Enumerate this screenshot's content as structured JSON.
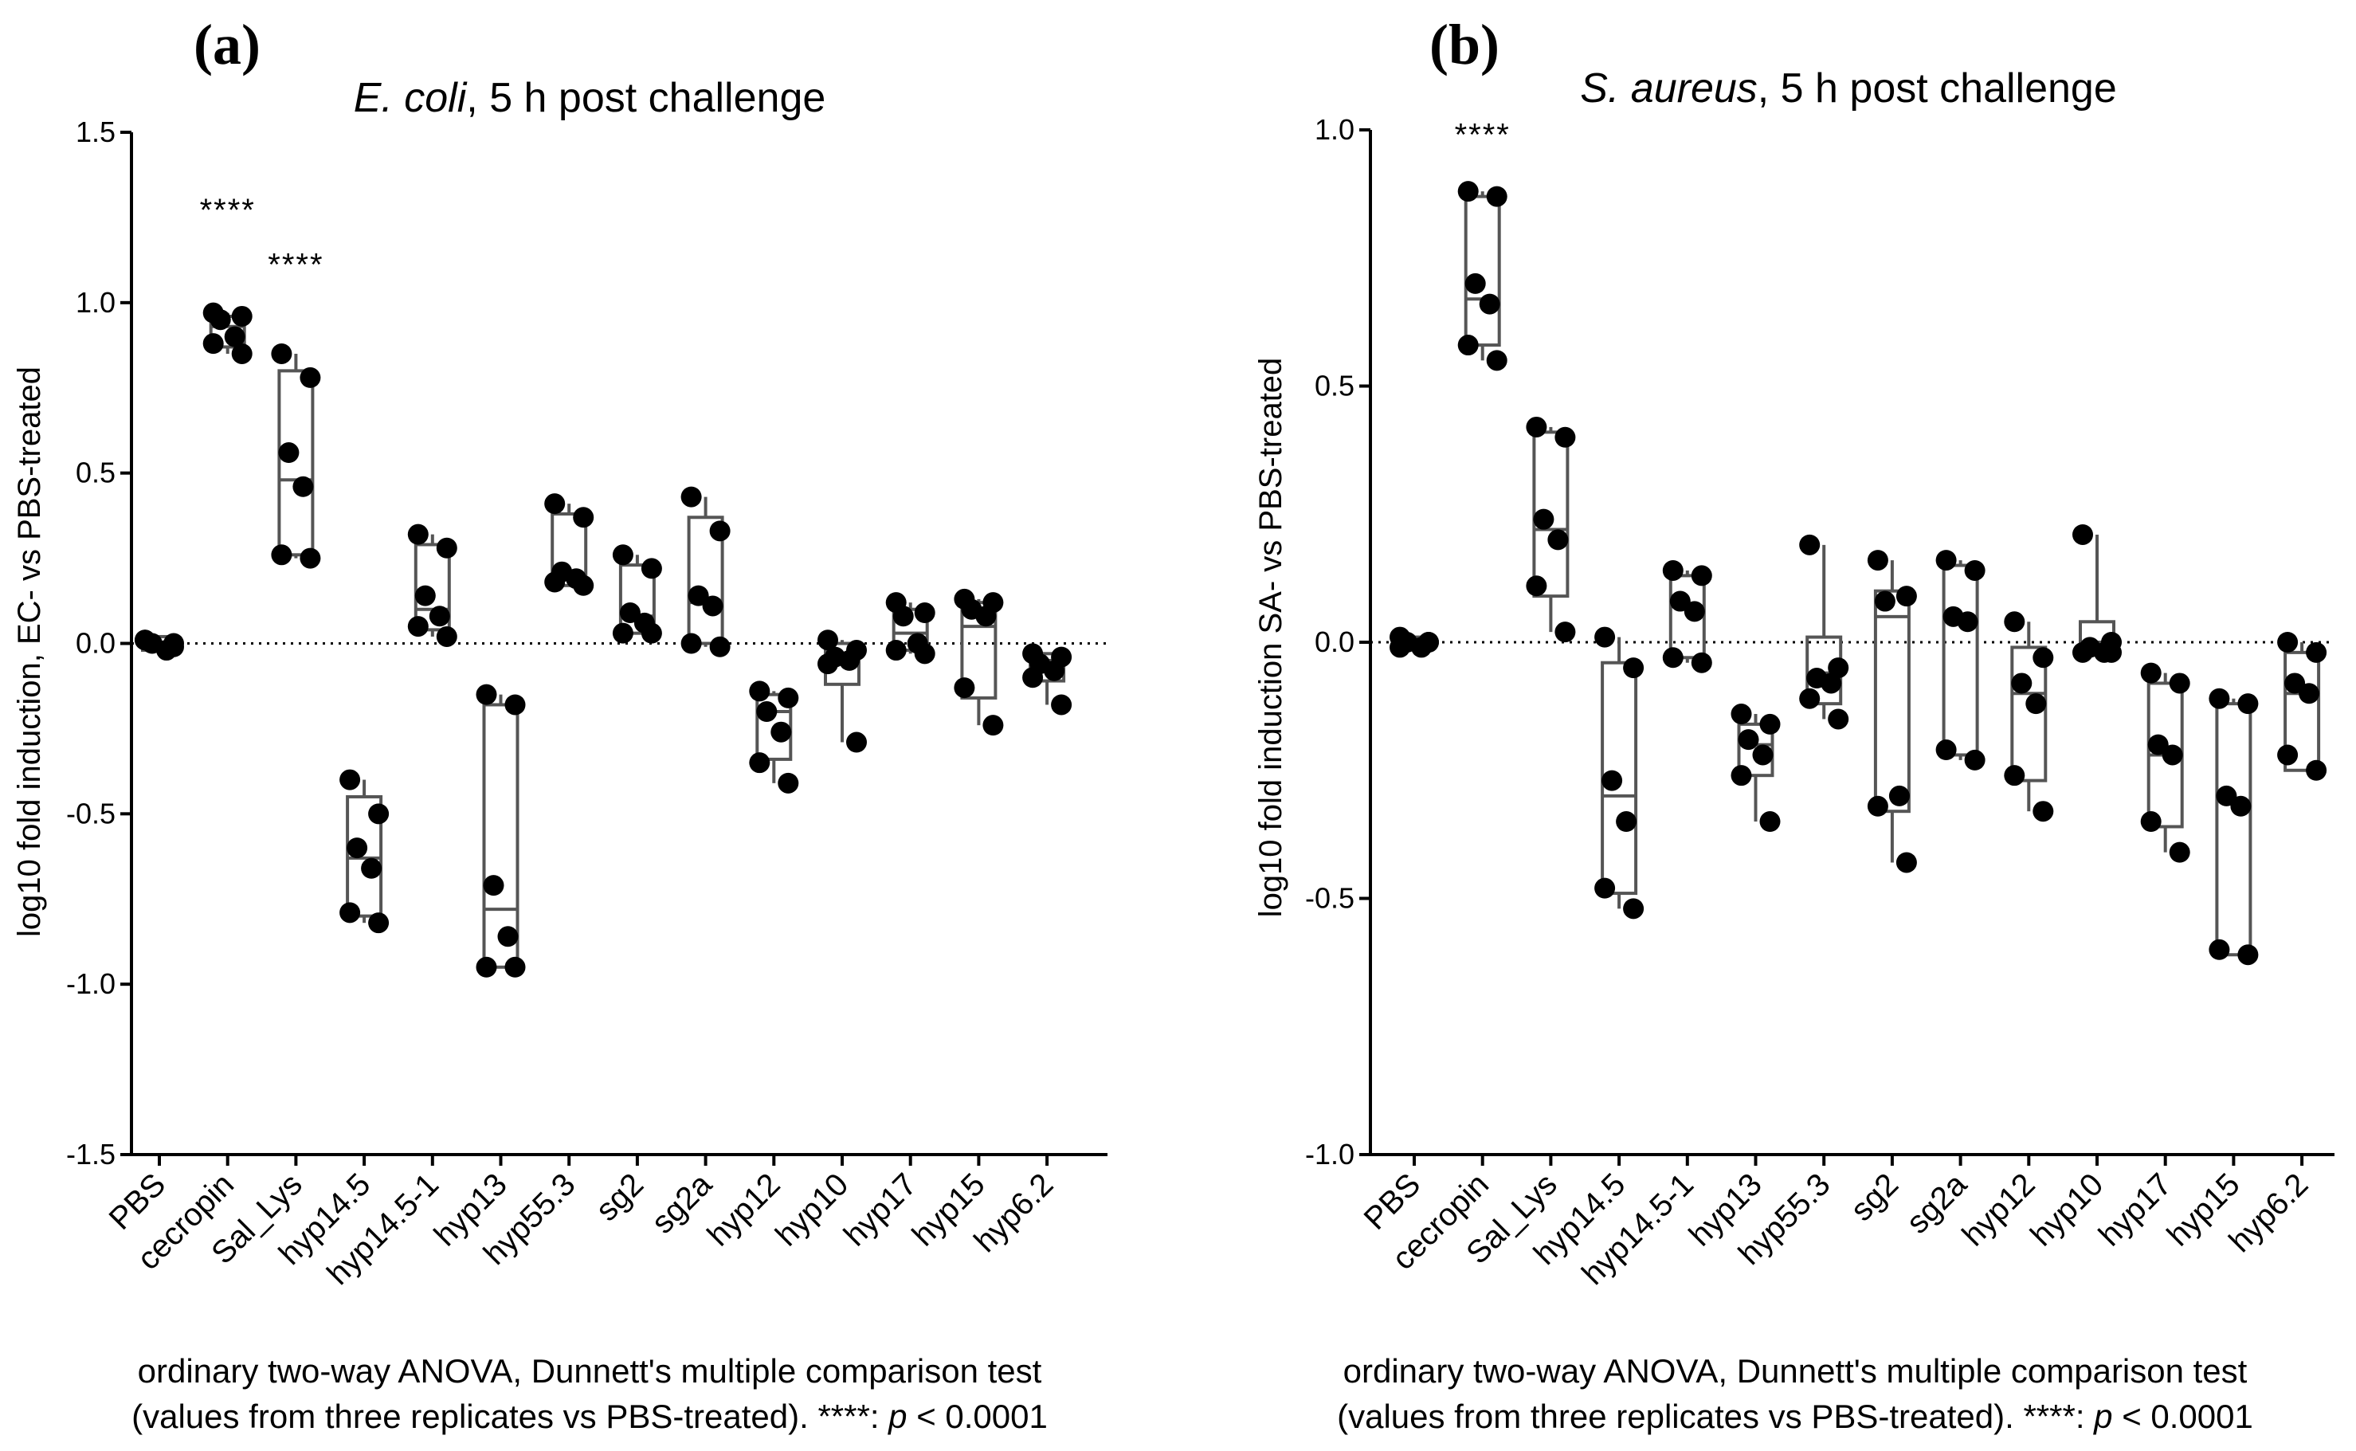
{
  "categories": [
    "PBS",
    "cecropin",
    "Sal_Lys",
    "hyp14.5",
    "hyp14.5-1",
    "hyp13",
    "hyp55.3",
    "sg2",
    "sg2a",
    "hyp12",
    "hyp10",
    "hyp17",
    "hyp15",
    "hyp6.2"
  ],
  "colors": {
    "box": "#555555",
    "point": "#000000",
    "axis": "#000000",
    "baseline": "#000000"
  },
  "footnote": {
    "line1": "ordinary two-way ANOVA, Dunnett's multiple comparison test",
    "line2_prefix": "(values from three replicates vs PBS-treated). ****: ",
    "p_symbol": "p",
    "line2_suffix": " < 0.0001"
  },
  "chart_data": [
    {
      "panel": "(a)",
      "type": "scatter",
      "title_italic": "E. coli",
      "title_rest": ", 5 h post challenge",
      "ylabel": "log10 fold induction, EC- vs PBS-treated",
      "ylim": [
        -1.5,
        1.5
      ],
      "yticks": [
        1.5,
        1.0,
        0.5,
        0.0,
        -0.5,
        -1.0,
        -1.5
      ],
      "ytick_labels": [
        "1.5",
        "1.0",
        "0.5",
        "0.0",
        "-0.5",
        "-1.0",
        "-1.5"
      ],
      "baseline": 0,
      "significance": [
        {
          "category": "cecropin",
          "label": "****",
          "y": 1.24
        },
        {
          "category": "Sal_Lys",
          "label": "****",
          "y": 1.08
        }
      ],
      "series": [
        {
          "name": "PBS",
          "box": [
            -0.02,
            0.0,
            0.02
          ],
          "points": [
            0.01,
            -0.01,
            0.0,
            -0.02,
            0.01,
            0.0
          ]
        },
        {
          "name": "cecropin",
          "box": [
            0.87,
            0.93,
            0.96
          ],
          "points": [
            0.97,
            0.96,
            0.95,
            0.9,
            0.88,
            0.85
          ]
        },
        {
          "name": "Sal_Lys",
          "box": [
            0.26,
            0.48,
            0.8
          ],
          "points": [
            0.85,
            0.78,
            0.56,
            0.46,
            0.26,
            0.25
          ]
        },
        {
          "name": "hyp14.5",
          "box": [
            -0.8,
            -0.63,
            -0.45
          ],
          "points": [
            -0.4,
            -0.5,
            -0.6,
            -0.66,
            -0.79,
            -0.82
          ]
        },
        {
          "name": "hyp14.5-1",
          "box": [
            0.04,
            0.1,
            0.29
          ],
          "points": [
            0.32,
            0.28,
            0.14,
            0.08,
            0.05,
            0.02
          ]
        },
        {
          "name": "hyp13",
          "box": [
            -0.95,
            -0.78,
            -0.18
          ],
          "points": [
            -0.15,
            -0.18,
            -0.71,
            -0.86,
            -0.95,
            -0.95
          ]
        },
        {
          "name": "hyp55.3",
          "box": [
            0.17,
            0.2,
            0.38
          ],
          "points": [
            0.41,
            0.37,
            0.21,
            0.19,
            0.18,
            0.17
          ]
        },
        {
          "name": "sg2",
          "box": [
            0.03,
            0.08,
            0.23
          ],
          "points": [
            0.26,
            0.22,
            0.09,
            0.06,
            0.03,
            0.03
          ]
        },
        {
          "name": "sg2a",
          "box": [
            0.0,
            0.12,
            0.37
          ],
          "points": [
            0.43,
            0.33,
            0.14,
            0.11,
            0.0,
            -0.01
          ]
        },
        {
          "name": "hyp12",
          "box": [
            -0.34,
            -0.2,
            -0.15
          ],
          "points": [
            -0.14,
            -0.16,
            -0.2,
            -0.26,
            -0.35,
            -0.41
          ]
        },
        {
          "name": "hyp10",
          "box": [
            -0.12,
            -0.04,
            0.0
          ],
          "points": [
            0.01,
            -0.02,
            -0.04,
            -0.05,
            -0.06,
            -0.29
          ]
        },
        {
          "name": "hyp17",
          "box": [
            -0.02,
            0.03,
            0.1
          ],
          "points": [
            0.12,
            0.09,
            0.08,
            0.0,
            -0.02,
            -0.03
          ]
        },
        {
          "name": "hyp15",
          "box": [
            -0.16,
            0.05,
            0.12
          ],
          "points": [
            0.13,
            0.12,
            0.1,
            0.08,
            -0.13,
            -0.24
          ]
        },
        {
          "name": "hyp6.2",
          "box": [
            -0.11,
            -0.05,
            -0.03
          ],
          "points": [
            -0.03,
            -0.04,
            -0.06,
            -0.08,
            -0.1,
            -0.18
          ]
        }
      ]
    },
    {
      "panel": "(b)",
      "type": "scatter",
      "title_italic": "S. aureus",
      "title_rest": ", 5 h post challenge",
      "ylabel": "log10 fold induction SA- vs PBS-treated",
      "ylim": [
        -1.0,
        1.0
      ],
      "yticks": [
        1.0,
        0.5,
        0.0,
        -0.5,
        -1.0
      ],
      "ytick_labels": [
        "1.0",
        "0.5",
        "0.0",
        "-0.5",
        "-1.0"
      ],
      "baseline": 0,
      "significance": [
        {
          "category": "cecropin",
          "label": "****",
          "y": 0.97
        }
      ],
      "series": [
        {
          "name": "PBS",
          "box": [
            -0.01,
            0.0,
            0.01
          ],
          "points": [
            0.01,
            0.0,
            0.0,
            -0.01,
            -0.01,
            0.0
          ]
        },
        {
          "name": "cecropin",
          "box": [
            0.58,
            0.67,
            0.87
          ],
          "points": [
            0.88,
            0.87,
            0.7,
            0.66,
            0.58,
            0.55
          ]
        },
        {
          "name": "Sal_Lys",
          "box": [
            0.09,
            0.22,
            0.41
          ],
          "points": [
            0.42,
            0.4,
            0.24,
            0.2,
            0.11,
            0.02
          ]
        },
        {
          "name": "hyp14.5",
          "box": [
            -0.49,
            -0.3,
            -0.04
          ],
          "points": [
            0.01,
            -0.05,
            -0.27,
            -0.35,
            -0.48,
            -0.52
          ]
        },
        {
          "name": "hyp14.5-1",
          "box": [
            -0.03,
            0.07,
            0.13
          ],
          "points": [
            0.14,
            0.13,
            0.08,
            0.06,
            -0.03,
            -0.04
          ]
        },
        {
          "name": "hyp13",
          "box": [
            -0.26,
            -0.2,
            -0.16
          ],
          "points": [
            -0.14,
            -0.16,
            -0.19,
            -0.22,
            -0.26,
            -0.35
          ]
        },
        {
          "name": "hyp55.3",
          "box": [
            -0.12,
            -0.06,
            0.01
          ],
          "points": [
            0.19,
            -0.05,
            -0.07,
            -0.08,
            -0.11,
            -0.15
          ]
        },
        {
          "name": "sg2",
          "box": [
            -0.33,
            0.05,
            0.1
          ],
          "points": [
            0.16,
            0.09,
            0.08,
            -0.3,
            -0.32,
            -0.43
          ]
        },
        {
          "name": "sg2a",
          "box": [
            -0.22,
            0.05,
            0.15
          ],
          "points": [
            0.16,
            0.14,
            0.05,
            0.04,
            -0.21,
            -0.23
          ]
        },
        {
          "name": "hyp12",
          "box": [
            -0.27,
            -0.1,
            -0.01
          ],
          "points": [
            0.04,
            -0.03,
            -0.08,
            -0.12,
            -0.26,
            -0.33
          ]
        },
        {
          "name": "hyp10",
          "box": [
            -0.02,
            0.0,
            0.04
          ],
          "points": [
            0.21,
            0.0,
            -0.01,
            -0.02,
            -0.02,
            -0.02
          ]
        },
        {
          "name": "hyp17",
          "box": [
            -0.36,
            -0.22,
            -0.08
          ],
          "points": [
            -0.06,
            -0.08,
            -0.2,
            -0.22,
            -0.35,
            -0.41
          ]
        },
        {
          "name": "hyp15",
          "box": [
            -0.61,
            -0.31,
            -0.12
          ],
          "points": [
            -0.11,
            -0.12,
            -0.3,
            -0.32,
            -0.6,
            -0.61
          ]
        },
        {
          "name": "hyp6.2",
          "box": [
            -0.25,
            -0.1,
            -0.02
          ],
          "points": [
            0.0,
            -0.02,
            -0.08,
            -0.1,
            -0.22,
            -0.25
          ]
        }
      ]
    }
  ]
}
